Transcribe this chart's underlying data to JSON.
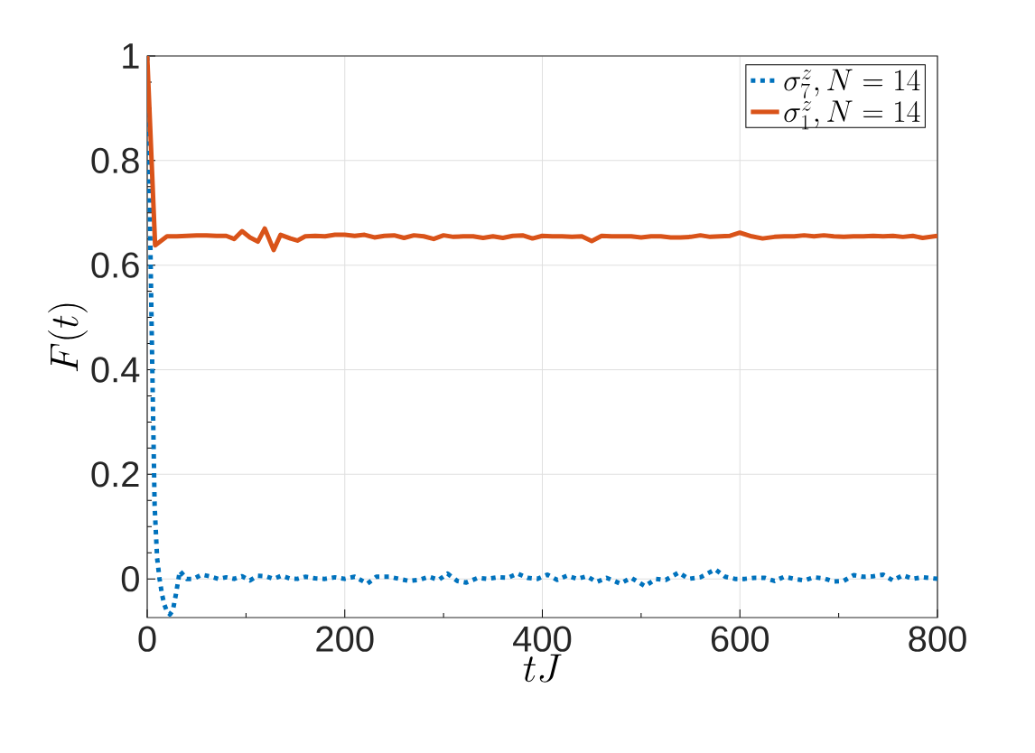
{
  "chart_data": {
    "type": "line",
    "xlabel": "tJ",
    "ylabel": "F(t)",
    "xlim": [
      0,
      800
    ],
    "ylim": [
      -0.074,
      1
    ],
    "xticks": [
      0,
      200,
      400,
      600,
      800
    ],
    "yticks": [
      0,
      0.2,
      0.4,
      0.6,
      0.8,
      1
    ],
    "grid": true,
    "legend": "top right",
    "series": [
      {
        "name": "\\sigma_7^z, N=14",
        "color": "#0072bd",
        "line_style": "dotted",
        "x": [
          0,
          2.5,
          5,
          7.5,
          10,
          12.5,
          15,
          17.5,
          20,
          23,
          26,
          29,
          33,
          40,
          47,
          55,
          63,
          72,
          80,
          88,
          96,
          104,
          112,
          120,
          128,
          136,
          144,
          152,
          160,
          170,
          180,
          190,
          200,
          210,
          223,
          232,
          245,
          255,
          265,
          275,
          285,
          295,
          304,
          314,
          323,
          335,
          345,
          355,
          365,
          375,
          385,
          395,
          405,
          415,
          425,
          435,
          445,
          455,
          465,
          479,
          490,
          504,
          515,
          525,
          538,
          548,
          560,
          575,
          585,
          595,
          605,
          615,
          625,
          635,
          645,
          655,
          665,
          675,
          685,
          695,
          705,
          715,
          725,
          735,
          745,
          755,
          765,
          775,
          785,
          800
        ],
        "values": [
          1,
          0.72,
          0.42,
          0.14,
          0.04,
          0.0,
          -0.03,
          -0.05,
          -0.062,
          -0.068,
          -0.06,
          -0.03,
          0.015,
          0.0,
          0.0,
          0.008,
          0.005,
          0.0,
          0.003,
          0.0,
          0.005,
          -0.003,
          0.006,
          0.005,
          0.0,
          0.006,
          0.001,
          0.0,
          0.004,
          0.001,
          0.0,
          0.003,
          0.0,
          0.004,
          -0.009,
          0.004,
          0.004,
          0.0,
          -0.004,
          -0.002,
          0.004,
          -0.002,
          0.01,
          -0.004,
          -0.007,
          0.002,
          0.0,
          0.003,
          0.002,
          0.01,
          0.002,
          0.0,
          0.008,
          -0.002,
          0.006,
          0.0,
          0.005,
          -0.006,
          0.002,
          -0.009,
          0.002,
          -0.014,
          0.0,
          -0.002,
          0.012,
          0.0,
          0.003,
          0.018,
          0.004,
          0.0,
          0.0,
          0.002,
          0.002,
          -0.004,
          0.004,
          0.0,
          -0.003,
          0.003,
          0.001,
          -0.005,
          -0.004,
          0.007,
          0.004,
          0.005,
          0.008,
          -0.003,
          0.007,
          0.0,
          0.003,
          0.0
        ]
      },
      {
        "name": "\\sigma_1^z, N=14",
        "color": "#d95319",
        "line_style": "solid",
        "x": [
          0,
          8,
          20,
          30,
          40,
          50,
          60,
          70,
          80,
          88,
          96,
          104,
          112,
          119,
          128,
          135,
          145,
          152,
          160,
          170,
          180,
          190,
          200,
          210,
          220,
          230,
          240,
          250,
          260,
          270,
          280,
          290,
          300,
          310,
          320,
          330,
          340,
          350,
          360,
          370,
          380,
          390,
          400,
          410,
          420,
          430,
          440,
          450,
          460,
          470,
          480,
          490,
          500,
          510,
          520,
          530,
          540,
          550,
          560,
          570,
          580,
          590,
          600,
          612,
          623,
          635,
          645,
          655,
          665,
          675,
          685,
          695,
          705,
          715,
          725,
          735,
          745,
          755,
          765,
          775,
          785,
          800
        ],
        "values": [
          1,
          0.638,
          0.655,
          0.655,
          0.656,
          0.657,
          0.657,
          0.656,
          0.656,
          0.65,
          0.665,
          0.653,
          0.645,
          0.67,
          0.629,
          0.658,
          0.651,
          0.647,
          0.655,
          0.656,
          0.655,
          0.658,
          0.658,
          0.656,
          0.658,
          0.653,
          0.656,
          0.657,
          0.652,
          0.657,
          0.655,
          0.65,
          0.657,
          0.654,
          0.655,
          0.655,
          0.652,
          0.655,
          0.652,
          0.656,
          0.657,
          0.651,
          0.656,
          0.655,
          0.655,
          0.654,
          0.655,
          0.646,
          0.656,
          0.655,
          0.655,
          0.655,
          0.653,
          0.655,
          0.655,
          0.653,
          0.653,
          0.654,
          0.657,
          0.654,
          0.655,
          0.656,
          0.662,
          0.655,
          0.651,
          0.654,
          0.655,
          0.655,
          0.657,
          0.655,
          0.657,
          0.655,
          0.654,
          0.655,
          0.655,
          0.656,
          0.655,
          0.656,
          0.654,
          0.656,
          0.652,
          0.656
        ]
      }
    ]
  }
}
